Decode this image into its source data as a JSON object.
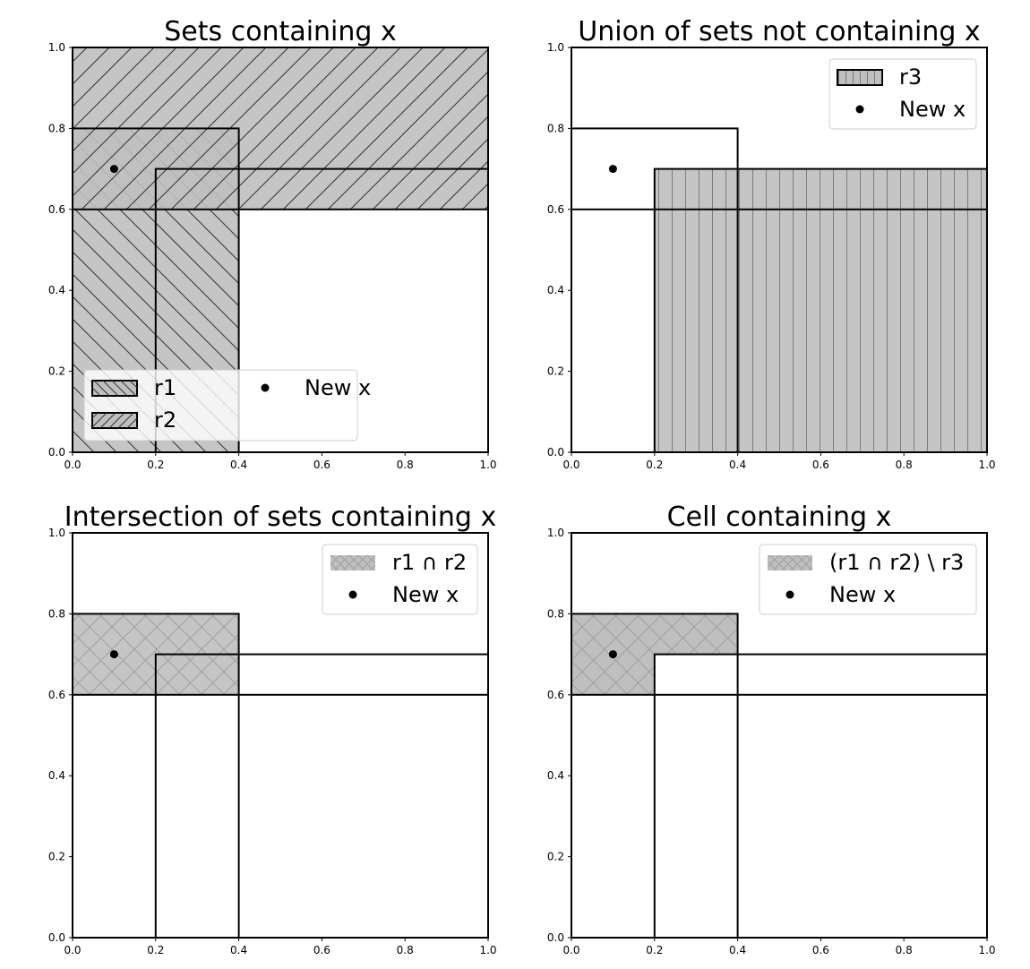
{
  "chart_data": [
    {
      "type": "area",
      "title": "Sets containing x",
      "xlim": [
        0,
        1
      ],
      "ylim": [
        0,
        1
      ],
      "xticks": [
        "0.0",
        "0.2",
        "0.4",
        "0.6",
        "0.8",
        "1.0"
      ],
      "yticks": [
        "0.0",
        "0.2",
        "0.4",
        "0.6",
        "0.8",
        "1.0"
      ],
      "outlines": [
        {
          "x0": 0.0,
          "x1": 0.4,
          "y0": 0.0,
          "y1": 0.8
        },
        {
          "x0": 0.0,
          "x1": 1.0,
          "y0": 0.6,
          "y1": 1.0
        },
        {
          "x0": 0.2,
          "x1": 1.0,
          "y0": 0.0,
          "y1": 0.7
        }
      ],
      "regions": [
        {
          "name": "r1",
          "x0": 0.0,
          "x1": 0.4,
          "y0": 0.0,
          "y1": 0.8,
          "hatch": "backslash"
        },
        {
          "name": "r2",
          "x0": 0.0,
          "x1": 1.0,
          "y0": 0.6,
          "y1": 1.0,
          "hatch": "slash"
        }
      ],
      "point": {
        "name": "New x",
        "x": 0.1,
        "y": 0.7
      },
      "legend": {
        "placement": "lower-left",
        "columns": 2,
        "entries": [
          {
            "label": "r1",
            "kind": "patch",
            "hatch": "backslash"
          },
          {
            "label": "r2",
            "kind": "patch",
            "hatch": "slash"
          },
          {
            "label": "New x",
            "kind": "marker"
          }
        ]
      }
    },
    {
      "type": "area",
      "title": "Union of sets not containing x",
      "xlim": [
        0,
        1
      ],
      "ylim": [
        0,
        1
      ],
      "xticks": [
        "0.0",
        "0.2",
        "0.4",
        "0.6",
        "0.8",
        "1.0"
      ],
      "yticks": [
        "0.0",
        "0.2",
        "0.4",
        "0.6",
        "0.8",
        "1.0"
      ],
      "outlines": [
        {
          "x0": 0.0,
          "x1": 0.4,
          "y0": 0.0,
          "y1": 0.8
        },
        {
          "x0": 0.0,
          "x1": 1.0,
          "y0": 0.6,
          "y1": 1.0
        },
        {
          "x0": 0.2,
          "x1": 1.0,
          "y0": 0.0,
          "y1": 0.7
        }
      ],
      "regions": [
        {
          "name": "r3",
          "x0": 0.2,
          "x1": 1.0,
          "y0": 0.0,
          "y1": 0.7,
          "hatch": "vertical"
        }
      ],
      "point": {
        "name": "New x",
        "x": 0.1,
        "y": 0.7
      },
      "legend": {
        "placement": "upper-right",
        "columns": 1,
        "entries": [
          {
            "label": "r3",
            "kind": "patch",
            "hatch": "vertical"
          },
          {
            "label": "New x",
            "kind": "marker"
          }
        ]
      }
    },
    {
      "type": "area",
      "title": "Intersection of sets containing x",
      "xlim": [
        0,
        1
      ],
      "ylim": [
        0,
        1
      ],
      "xticks": [
        "0.0",
        "0.2",
        "0.4",
        "0.6",
        "0.8",
        "1.0"
      ],
      "yticks": [
        "0.0",
        "0.2",
        "0.4",
        "0.6",
        "0.8",
        "1.0"
      ],
      "outlines": [
        {
          "x0": 0.0,
          "x1": 0.4,
          "y0": 0.0,
          "y1": 0.8
        },
        {
          "x0": 0.0,
          "x1": 1.0,
          "y0": 0.6,
          "y1": 1.0
        },
        {
          "x0": 0.2,
          "x1": 1.0,
          "y0": 0.0,
          "y1": 0.7
        }
      ],
      "regions": [
        {
          "name": "r1 ∩ r2",
          "x0": 0.0,
          "x1": 0.4,
          "y0": 0.6,
          "y1": 0.8,
          "hatch": "cross"
        }
      ],
      "point": {
        "name": "New x",
        "x": 0.1,
        "y": 0.7
      },
      "legend": {
        "placement": "upper-right",
        "columns": 1,
        "entries": [
          {
            "label": "r1 ∩ r2",
            "kind": "patch",
            "hatch": "cross"
          },
          {
            "label": "New x",
            "kind": "marker"
          }
        ]
      }
    },
    {
      "type": "area",
      "title": "Cell containing x",
      "xlim": [
        0,
        1
      ],
      "ylim": [
        0,
        1
      ],
      "xticks": [
        "0.0",
        "0.2",
        "0.4",
        "0.6",
        "0.8",
        "1.0"
      ],
      "yticks": [
        "0.0",
        "0.2",
        "0.4",
        "0.6",
        "0.8",
        "1.0"
      ],
      "outlines": [
        {
          "x0": 0.0,
          "x1": 0.4,
          "y0": 0.0,
          "y1": 0.8
        },
        {
          "x0": 0.0,
          "x1": 1.0,
          "y0": 0.6,
          "y1": 1.0
        },
        {
          "x0": 0.2,
          "x1": 1.0,
          "y0": 0.0,
          "y1": 0.7
        }
      ],
      "regions": [
        {
          "name": "(r1 ∩ r2) \\ r3",
          "polygon": [
            [
              0.0,
              0.6
            ],
            [
              0.2,
              0.6
            ],
            [
              0.2,
              0.7
            ],
            [
              0.4,
              0.7
            ],
            [
              0.4,
              0.8
            ],
            [
              0.0,
              0.8
            ]
          ],
          "hatch": "cross"
        }
      ],
      "point": {
        "name": "New x",
        "x": 0.1,
        "y": 0.7
      },
      "legend": {
        "placement": "upper-right",
        "columns": 1,
        "entries": [
          {
            "label": "(r1 ∩ r2) \\ r3",
            "kind": "patch",
            "hatch": "cross"
          },
          {
            "label": "New x",
            "kind": "marker"
          }
        ]
      }
    }
  ],
  "colors": {
    "fill": "#bfbfbf",
    "edge": "#000000",
    "hatch_light": "#a0a0a0",
    "legend_border": "#cccccc"
  }
}
